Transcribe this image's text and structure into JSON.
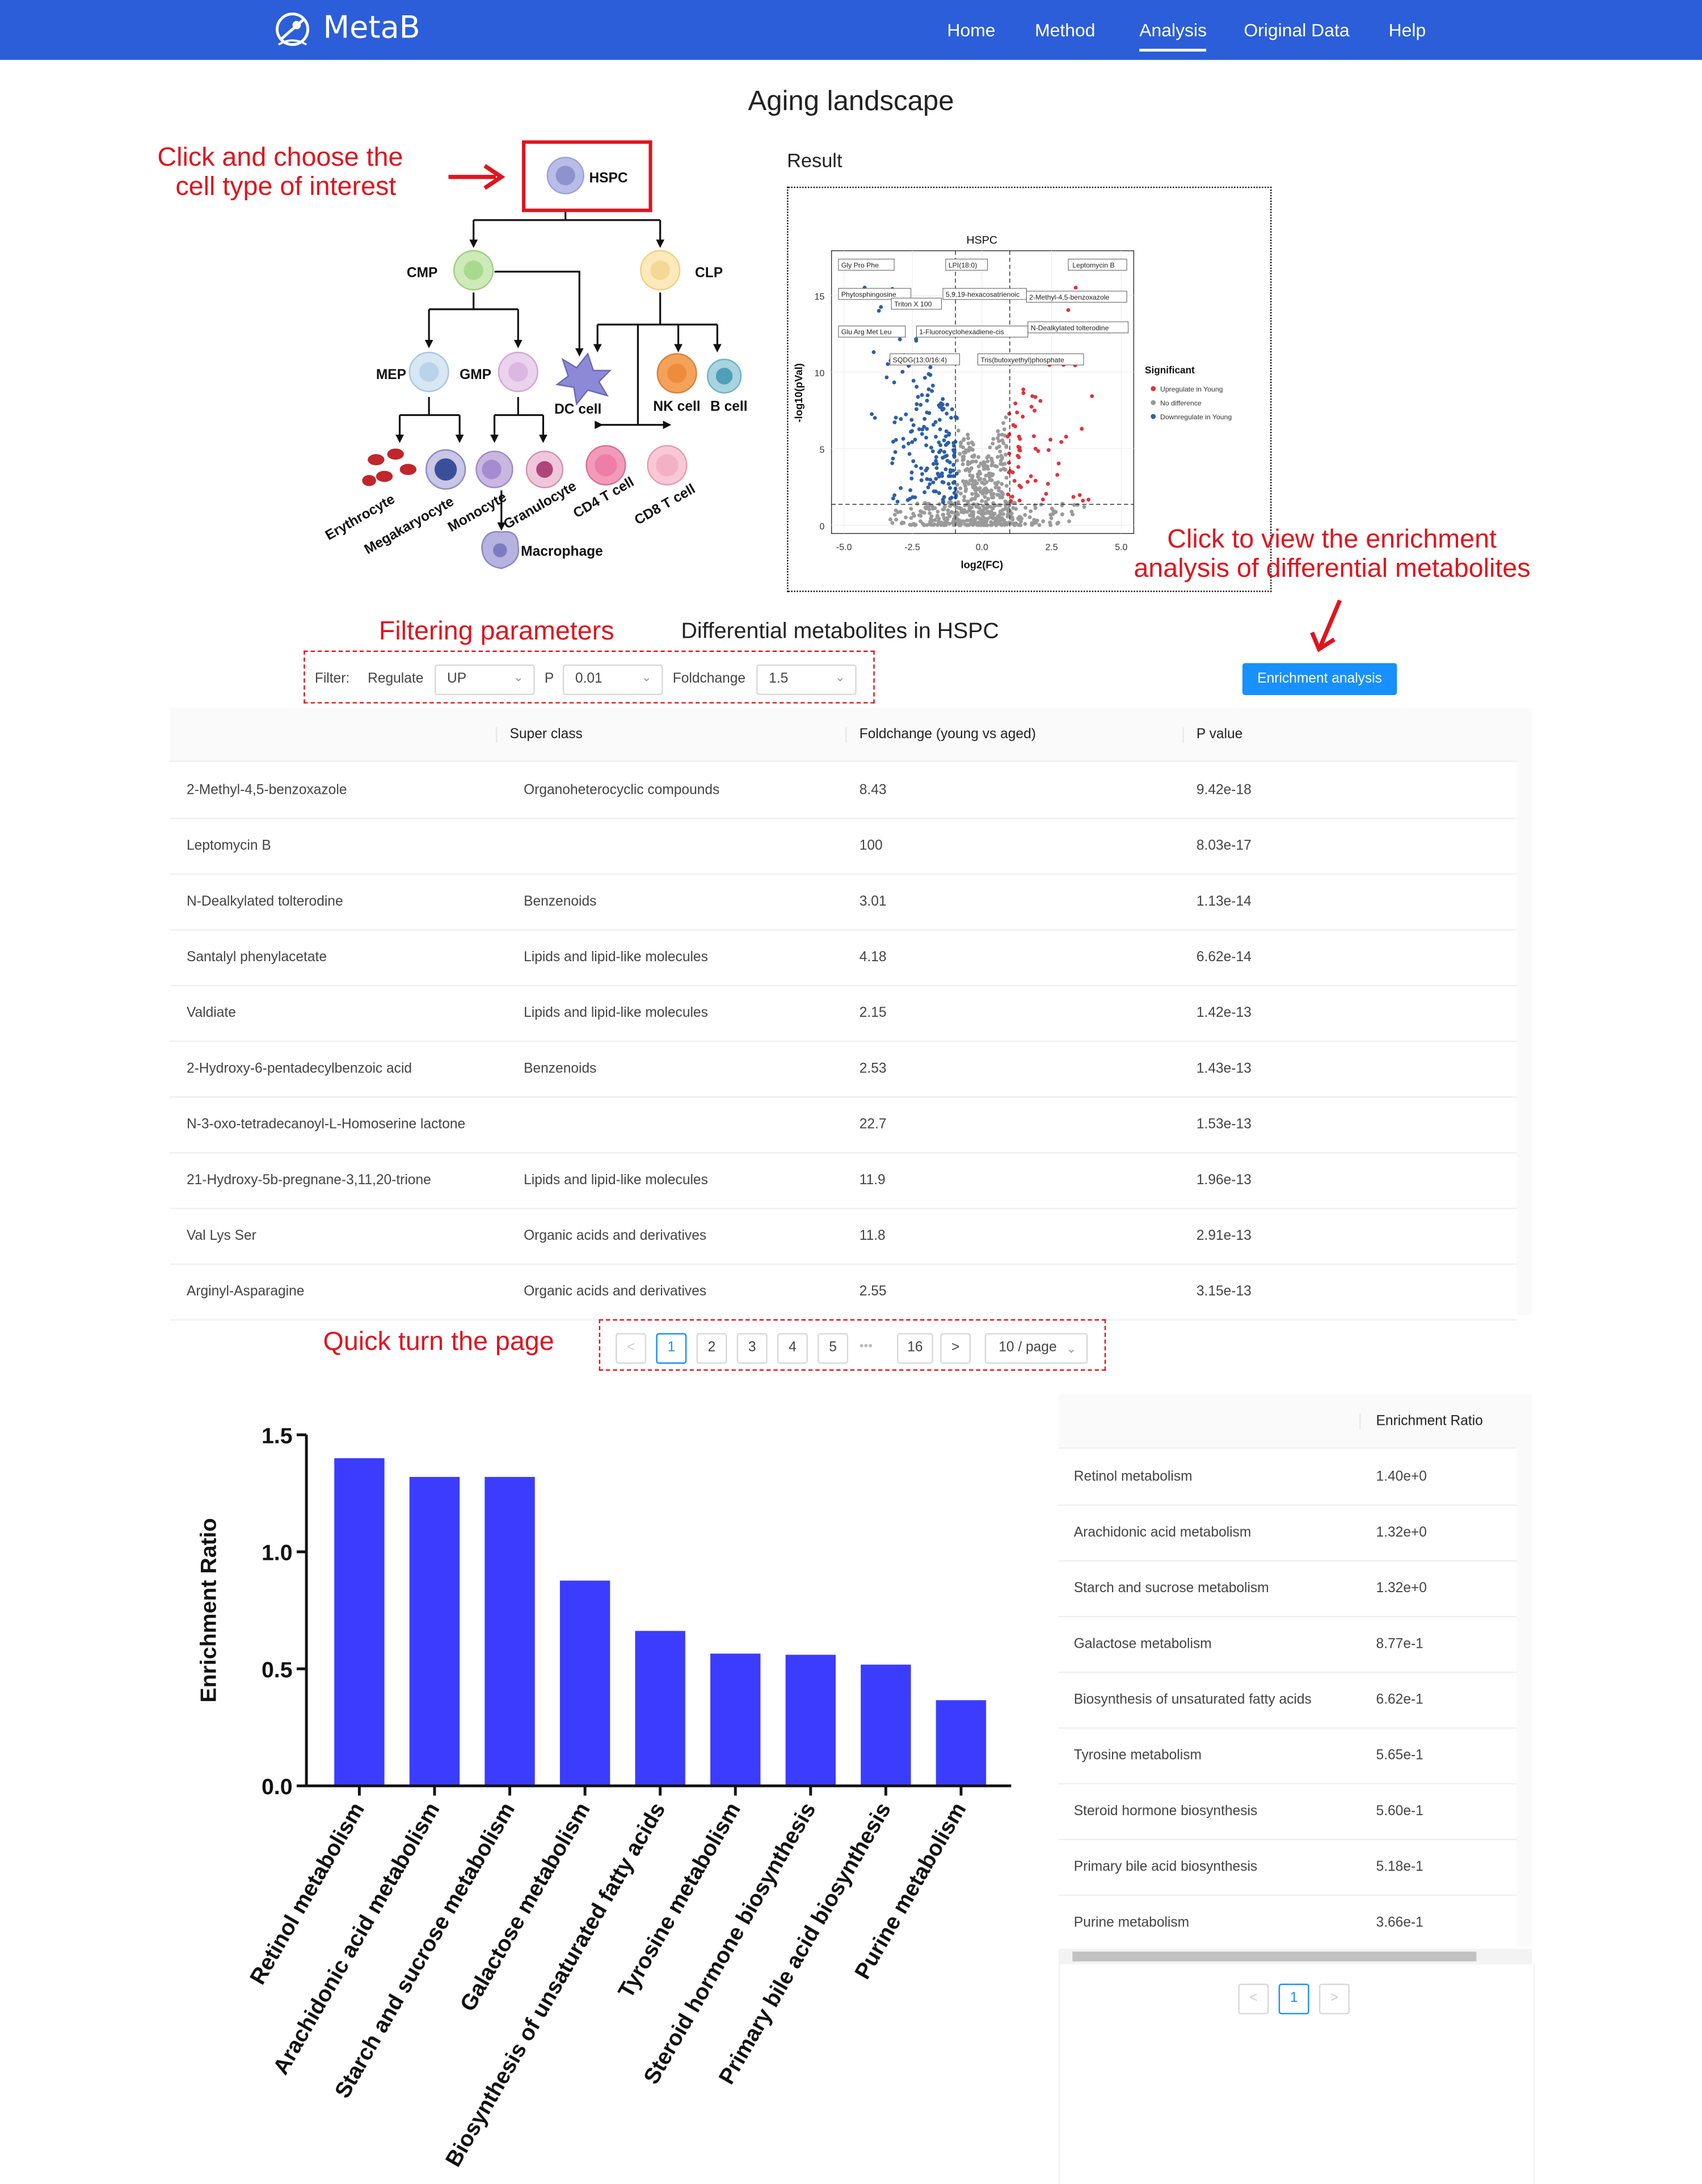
{
  "nav": {
    "brand": "MetaB",
    "items": [
      "Home",
      "Method",
      "Analysis",
      "Original Data",
      "Help"
    ],
    "active": "Analysis"
  },
  "page_title": "Aging landscape",
  "annotations": {
    "choose_cell_line1": "Click and choose the",
    "choose_cell_line2": "cell type of interest",
    "enrichment_line1": "Click to view the enrichment",
    "enrichment_line2": "analysis of differential metabolites",
    "filtering": "Filtering parameters",
    "quick_turn": "Quick turn the page"
  },
  "lineage_tree": {
    "cells": [
      "HSPC",
      "CMP",
      "CLP",
      "MEP",
      "GMP",
      "DC cell",
      "NK cell",
      "B cell",
      "Erythrocyte",
      "Megakaryocyte",
      "Monocyte",
      "Granulocyte",
      "CD4 T cell",
      "CD8 T cell",
      "Macrophage"
    ]
  },
  "result": {
    "label": "Result",
    "plot_title": "HSPC",
    "xlabel": "log2(FC)",
    "ylabel": "-log10(pVal)",
    "x_ticks": [
      "-5.0",
      "-2.5",
      "0.0",
      "2.5",
      "5.0"
    ],
    "y_ticks": [
      "0",
      "5",
      "10",
      "15"
    ],
    "legend_title": "Significant",
    "legend_items": [
      "Upregulate in Young",
      "No difference",
      "Downregulate in Young"
    ],
    "point_labels": [
      "Gly Pro Phe",
      "LPI(18:0)",
      "Leptomycin B",
      "Phytosphingosine",
      "5,9,19-hexacosatrienoic",
      "2-Methyl-4,5-benzoxazole",
      "Triton X 100",
      "N-Dealkylated tolterodine",
      "Glu Arg Met Leu",
      "1-Fluorocyclohexadiene-cis",
      "SQDG(13:0/16:4)",
      "Tris(butoxyethyl)phosphate"
    ],
    "colors": {
      "up": "#e2323c",
      "none": "#9a9a9a",
      "down": "#2c5fa8"
    }
  },
  "diff_title": "Differential metabolites in HSPC",
  "filter": {
    "label": "Filter:",
    "regulate_label": "Regulate",
    "regulate_value": "UP",
    "p_label": "P",
    "p_value": "0.01",
    "fc_label": "Foldchange",
    "fc_value": "1.5"
  },
  "enrichment_button": "Enrichment analysis",
  "metab_table": {
    "columns": [
      "",
      "Super class",
      "Foldchange (young vs aged)",
      "P value"
    ],
    "rows": [
      [
        "2-Methyl-4,5-benzoxazole",
        "Organoheterocyclic compounds",
        "8.43",
        "9.42e-18"
      ],
      [
        "Leptomycin B",
        "",
        "100",
        "8.03e-17"
      ],
      [
        "N-Dealkylated tolterodine",
        "Benzenoids",
        "3.01",
        "1.13e-14"
      ],
      [
        "Santalyl phenylacetate",
        "Lipids and lipid-like molecules",
        "4.18",
        "6.62e-14"
      ],
      [
        "Valdiate",
        "Lipids and lipid-like molecules",
        "2.15",
        "1.42e-13"
      ],
      [
        "2-Hydroxy-6-pentadecylbenzoic acid",
        "Benzenoids",
        "2.53",
        "1.43e-13"
      ],
      [
        "N-3-oxo-tetradecanoyl-L-Homoserine lactone",
        "",
        "22.7",
        "1.53e-13"
      ],
      [
        "21-Hydroxy-5b-pregnane-3,11,20-trione",
        "Lipids and lipid-like molecules",
        "11.9",
        "1.96e-13"
      ],
      [
        "Val Lys Ser",
        "Organic acids and derivatives",
        "11.8",
        "2.91e-13"
      ],
      [
        "Arginyl-Asparagine",
        "Organic acids and derivatives",
        "2.55",
        "3.15e-13"
      ]
    ]
  },
  "pagination": {
    "prev": "<",
    "pages": [
      "1",
      "2",
      "3",
      "4",
      "5"
    ],
    "ellipsis": "•••",
    "last": "16",
    "next": ">",
    "page_size": "10 / page"
  },
  "chart_data": {
    "type": "bar",
    "title": "",
    "xlabel": "",
    "ylabel": "Enrichment Ratio",
    "ylim": [
      0,
      1.5
    ],
    "y_ticks": [
      "0.0",
      "0.5",
      "1.0",
      "1.5"
    ],
    "categories": [
      "Retinol metabolism",
      "Arachidonic acid metabolism",
      "Starch and sucrose metabolism",
      "Galactose metabolism",
      "Biosynthesis of unsaturated fatty acids",
      "Tyrosine metabolism",
      "Steroid hormone biosynthesis",
      "Primary bile acid biosynthesis",
      "Purine metabolism"
    ],
    "values": [
      1.4,
      1.32,
      1.32,
      0.877,
      0.662,
      0.565,
      0.56,
      0.518,
      0.366
    ],
    "bar_color": "#3c3cff"
  },
  "enrich_table": {
    "columns": [
      "",
      "Enrichment Ratio"
    ],
    "rows": [
      [
        "Retinol metabolism",
        "1.40e+0"
      ],
      [
        "Arachidonic acid metabolism",
        "1.32e+0"
      ],
      [
        "Starch and sucrose metabolism",
        "1.32e+0"
      ],
      [
        "Galactose metabolism",
        "8.77e-1"
      ],
      [
        "Biosynthesis of unsaturated fatty acids",
        "6.62e-1"
      ],
      [
        "Tyrosine metabolism",
        "5.65e-1"
      ],
      [
        "Steroid hormone biosynthesis",
        "5.60e-1"
      ],
      [
        "Primary bile acid biosynthesis",
        "5.18e-1"
      ],
      [
        "Purine metabolism",
        "3.66e-1"
      ]
    ],
    "pagination": {
      "prev": "<",
      "page": "1",
      "next": ">"
    }
  }
}
